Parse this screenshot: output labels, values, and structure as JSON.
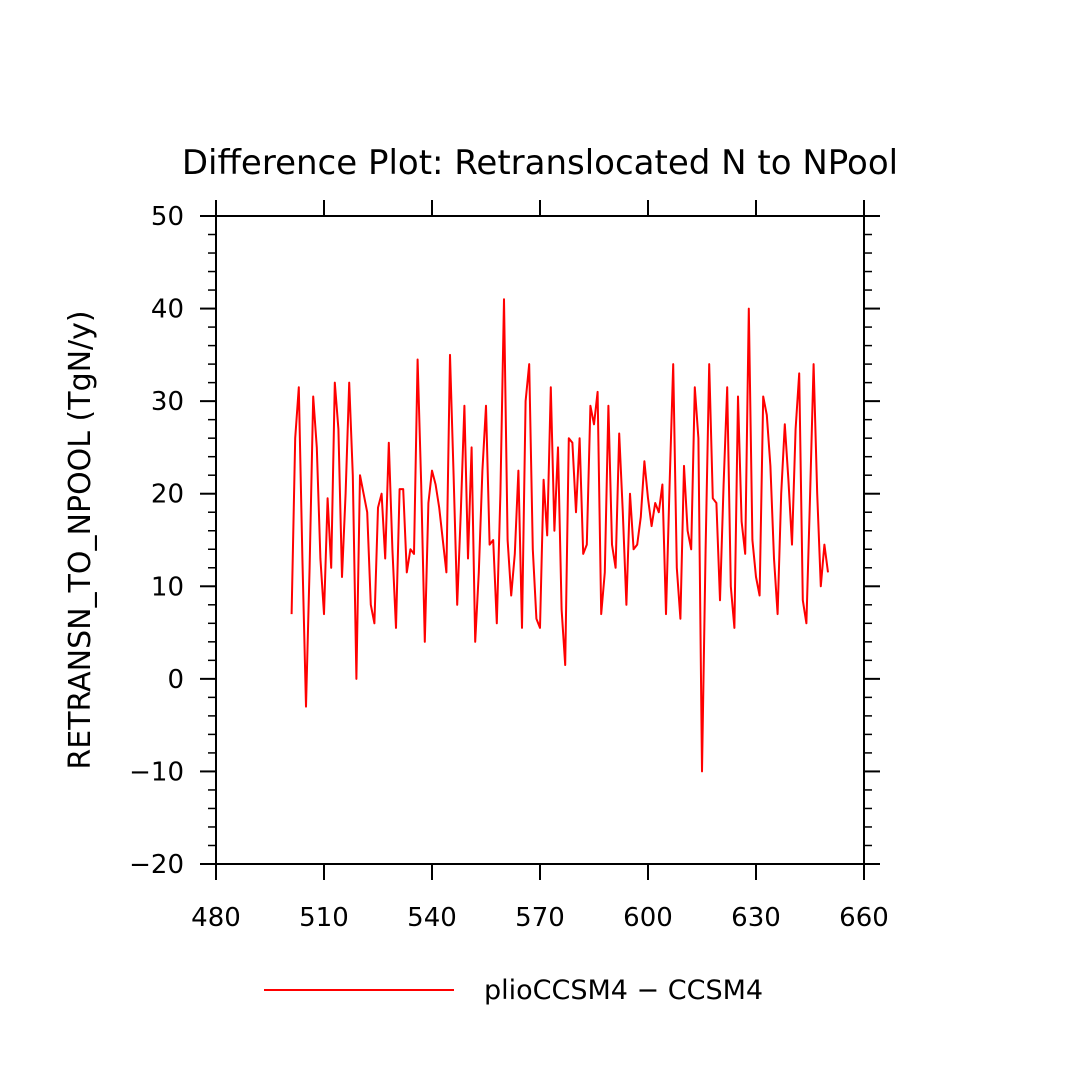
{
  "chart_data": {
    "type": "line",
    "title": "Difference Plot: Retranslocated N to NPool",
    "ylabel": "RETRANSN_TO_NPOOL  (TgN/y)",
    "xlabel": "",
    "xlim": [
      480,
      660
    ],
    "ylim": [
      -20,
      50
    ],
    "x_ticks": [
      480,
      510,
      540,
      570,
      600,
      630,
      660
    ],
    "y_ticks": [
      -20,
      -10,
      0,
      10,
      20,
      30,
      40,
      50
    ],
    "x_tick_labels": [
      "480",
      "510",
      "540",
      "570",
      "600",
      "630",
      "660"
    ],
    "y_tick_labels": [
      "−20",
      "−10",
      "0",
      "10",
      "20",
      "30",
      "40",
      "50"
    ],
    "grid": false,
    "legend_position": "bottom",
    "colors": {
      "series": "#ff0000",
      "axis": "#000000",
      "background": "#ffffff"
    },
    "series": [
      {
        "name": "plioCCSM4 − CCSM4",
        "x": [
          501,
          502,
          503,
          504,
          505,
          506,
          507,
          508,
          509,
          510,
          511,
          512,
          513,
          514,
          515,
          516,
          517,
          518,
          519,
          520,
          521,
          522,
          523,
          524,
          525,
          526,
          527,
          528,
          529,
          530,
          531,
          532,
          533,
          534,
          535,
          536,
          537,
          538,
          539,
          540,
          541,
          542,
          543,
          544,
          545,
          546,
          547,
          548,
          549,
          550,
          551,
          552,
          553,
          554,
          555,
          556,
          557,
          558,
          559,
          560,
          561,
          562,
          563,
          564,
          565,
          566,
          567,
          568,
          569,
          570,
          571,
          572,
          573,
          574,
          575,
          576,
          577,
          578,
          579,
          580,
          581,
          582,
          583,
          584,
          585,
          586,
          587,
          588,
          589,
          590,
          591,
          592,
          593,
          594,
          595,
          596,
          597,
          598,
          599,
          600,
          601,
          602,
          603,
          604,
          605,
          606,
          607,
          608,
          609,
          610,
          611,
          612,
          613,
          614,
          615,
          616,
          617,
          618,
          619,
          620,
          621,
          622,
          623,
          624,
          625,
          626,
          627,
          628,
          629,
          630,
          631,
          632,
          633,
          634,
          635,
          636,
          637,
          638,
          639,
          640,
          641,
          642,
          643,
          644,
          645,
          646,
          647,
          648,
          649,
          650
        ],
        "values": [
          7,
          26,
          31.5,
          13,
          -3,
          12,
          30.5,
          25,
          13,
          7,
          19.5,
          12,
          32,
          27,
          11,
          20,
          32,
          22,
          0,
          22,
          20,
          18,
          8,
          6,
          18.5,
          20,
          13,
          25.5,
          14,
          5.5,
          20.5,
          20.5,
          11.5,
          14,
          13.5,
          34.5,
          21,
          4,
          19,
          22.5,
          21,
          18.5,
          15,
          11.5,
          35,
          22,
          8,
          18,
          29.5,
          13,
          25,
          4,
          11.5,
          22.5,
          29.5,
          14.5,
          15,
          6,
          20,
          41,
          15,
          9,
          13.5,
          22.5,
          5.5,
          30,
          34,
          14,
          6.5,
          5.5,
          21.5,
          15.5,
          31.5,
          16,
          25,
          7.5,
          1.5,
          26,
          25.5,
          18,
          26,
          13.5,
          14.5,
          29.5,
          27.5,
          31,
          7,
          11.5,
          29.5,
          14.5,
          12,
          26.5,
          18,
          8,
          20,
          14,
          14.5,
          17.5,
          23.5,
          19.5,
          16.5,
          19,
          18,
          21,
          7,
          21,
          34,
          12,
          6.5,
          23,
          16,
          14,
          31.5,
          26,
          -10,
          14,
          34,
          19.5,
          19,
          8.5,
          21,
          31.5,
          10,
          5.5,
          30.5,
          17,
          13.5,
          40,
          15,
          11,
          9,
          30.5,
          28.5,
          23,
          13,
          7,
          20,
          27.5,
          21.5,
          14.5,
          27,
          33,
          8.5,
          6,
          19.5,
          34,
          20,
          10,
          14.5,
          11.5
        ]
      }
    ]
  }
}
